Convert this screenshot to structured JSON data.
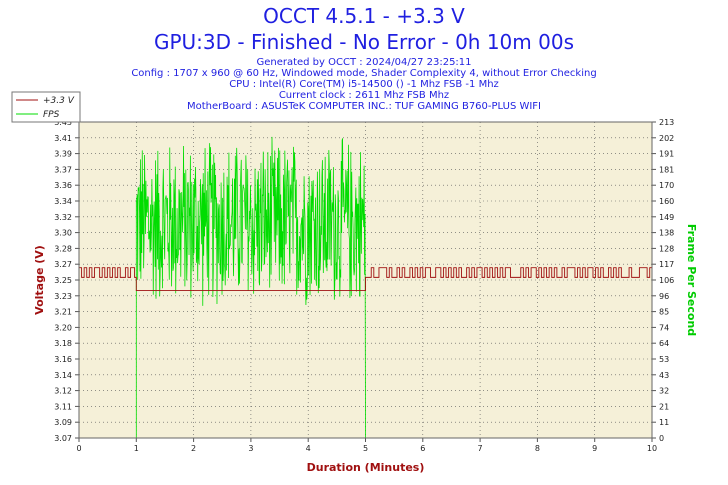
{
  "header": {
    "title": "OCCT 4.5.1 - +3.3 V",
    "subtitle": "GPU:3D - Finished - No Error - 0h 10m 00s",
    "info_lines": [
      "Generated by OCCT : 2024/04/27 23:25:11",
      "Config : 1707 x 960 @ 60 Hz, Windowed mode, Shader Complexity 4, without Error Checking",
      "CPU : Intel(R) Core(TM) i5-14500 () -1 Mhz FSB -1 Mhz",
      "Current clock : 2611 Mhz FSB  Mhz",
      "MotherBoard : ASUSTeK COMPUTER INC.: TUF GAMING B760-PLUS WIFI"
    ]
  },
  "colors": {
    "voltage": "#a01010",
    "fps": "#00dd00",
    "plot_bg": "#f5f0d8",
    "title": "#1f1fe0"
  },
  "chart_data": {
    "type": "line",
    "xlabel": "Duration (Minutes)",
    "ylabel": "Voltage (V)",
    "y2label": "Frame Per Second",
    "xlim": [
      0,
      10
    ],
    "ylim": [
      3.07,
      3.43
    ],
    "y2lim": [
      0,
      213
    ],
    "x_ticks": [
      "0",
      "1",
      "2",
      "3",
      "4",
      "5",
      "6",
      "7",
      "8",
      "9",
      "10"
    ],
    "y_ticks": [
      "3.07",
      "3.09",
      "3.11",
      "3.12",
      "3.14",
      "3.16",
      "3.18",
      "3.20",
      "3.21",
      "3.23",
      "3.25",
      "3.27",
      "3.28",
      "3.30",
      "3.32",
      "3.34",
      "3.36",
      "3.37",
      "3.39",
      "3.41",
      "3.43"
    ],
    "y2_ticks": [
      "0",
      "11",
      "21",
      "32",
      "43",
      "53",
      "64",
      "74",
      "85",
      "96",
      "106",
      "117",
      "128",
      "138",
      "149",
      "160",
      "170",
      "181",
      "191",
      "202",
      "213"
    ],
    "grid": true,
    "legend": "top-left",
    "series": [
      {
        "name": "+3.3 V",
        "axis": "left",
        "segments": [
          {
            "x_start": 0.0,
            "x_end": 0.97,
            "pattern": "toggle",
            "low": 3.253,
            "high": 3.264
          },
          {
            "x_start": 0.97,
            "x_end": 1.0,
            "pattern": "flat",
            "value": 3.253
          },
          {
            "x_start": 1.0,
            "x_end": 5.0,
            "pattern": "flat",
            "value": 3.238
          },
          {
            "x_start": 5.0,
            "x_end": 5.1,
            "pattern": "flat",
            "value": 3.253
          },
          {
            "x_start": 5.1,
            "x_end": 10.0,
            "pattern": "toggle",
            "low": 3.253,
            "high": 3.264
          }
        ]
      },
      {
        "name": "FPS",
        "axis": "right",
        "segments": [
          {
            "x_start": 0.0,
            "x_end": 1.0,
            "pattern": "flat",
            "value": 0
          },
          {
            "x_start": 1.0,
            "x_end": 5.0,
            "pattern": "noisy",
            "low": 80,
            "high": 203,
            "mean": 145
          },
          {
            "x_start": 5.0,
            "x_end": 10.0,
            "pattern": "flat",
            "value": 0
          }
        ]
      }
    ]
  }
}
